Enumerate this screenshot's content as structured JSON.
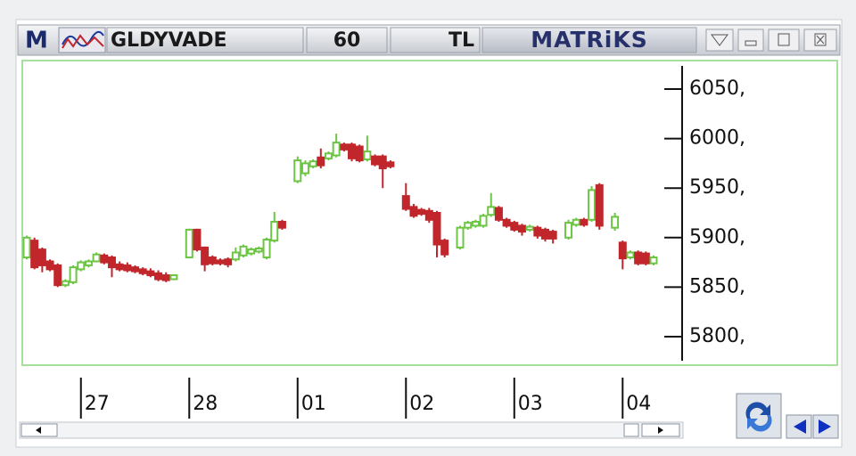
{
  "toolbar": {
    "logo": "M",
    "symbol": "GLDYVADE",
    "period": "60",
    "currency": "TL",
    "brand": "MATRiKS"
  },
  "chart_data": {
    "type": "candlestick",
    "up_color": "#6cc644",
    "down_color": "#c0262b",
    "categories": [
      null,
      null,
      null,
      null,
      null,
      null,
      null,
      "27",
      null,
      null,
      null,
      null,
      null,
      null,
      null,
      null,
      null,
      null,
      null,
      null,
      null,
      "28",
      null,
      null,
      null,
      null,
      null,
      null,
      null,
      null,
      null,
      null,
      null,
      null,
      null,
      "01",
      null,
      null,
      null,
      null,
      null,
      null,
      null,
      null,
      null,
      null,
      null,
      null,
      null,
      "02",
      null,
      null,
      null,
      null,
      null,
      null,
      null,
      null,
      null,
      null,
      null,
      null,
      null,
      "03",
      null,
      null,
      null,
      null,
      null,
      null,
      null,
      null,
      null,
      null,
      null,
      null,
      null,
      "04",
      null,
      null,
      null,
      null
    ],
    "open": [
      5880,
      5897,
      5888,
      5876,
      5872,
      5852,
      5855,
      5868,
      5872,
      5876,
      5882,
      5880,
      5873,
      5872,
      5870,
      5868,
      5866,
      5864,
      5862,
      5858,
      null,
      5880,
      5908,
      5890,
      5880,
      5877,
      5878,
      5878,
      5882,
      5884,
      5886,
      5880,
      5897,
      5916,
      null,
      5957,
      5965,
      5972,
      5981,
      5980,
      5983,
      5994,
      5994,
      5992,
      5979,
      5982,
      5982,
      5976,
      null,
      5942,
      5931,
      5928,
      5927,
      5925,
      5897,
      null,
      5890,
      5910,
      5912,
      5912,
      5923,
      5930,
      5918,
      5915,
      5912,
      5908,
      5910,
      5908,
      5906,
      null,
      5900,
      5913,
      5918,
      5918,
      5953,
      null,
      5910,
      5895,
      5880,
      5885,
      5884,
      5874
    ],
    "high": [
      5902,
      5900,
      5890,
      5878,
      5874,
      5858,
      5872,
      5877,
      5878,
      5885,
      5884,
      5882,
      5876,
      5875,
      5872,
      5870,
      5869,
      5867,
      5865,
      5863,
      null,
      5909,
      5909,
      5891,
      5882,
      5879,
      5880,
      5890,
      5893,
      5890,
      5891,
      5900,
      5926,
      5918,
      null,
      5982,
      5978,
      5979,
      5990,
      5987,
      6005,
      5996,
      5996,
      5994,
      6003,
      5984,
      5984,
      5978,
      null,
      5955,
      5934,
      5930,
      5930,
      5927,
      5899,
      null,
      5912,
      5917,
      5918,
      5924,
      5945,
      5932,
      5920,
      5917,
      5914,
      5913,
      5912,
      5910,
      5908,
      null,
      5918,
      5920,
      5920,
      5952,
      5955,
      null,
      5925,
      5897,
      5887,
      5887,
      5886,
      5882
    ],
    "low": [
      5878,
      5868,
      5865,
      5866,
      5850,
      5850,
      5853,
      5866,
      5870,
      5875,
      5873,
      5860,
      5866,
      5865,
      5864,
      5862,
      5860,
      5856,
      5855,
      5857,
      null,
      5879,
      5886,
      5866,
      5872,
      5872,
      5870,
      5876,
      5880,
      5882,
      5884,
      5878,
      5895,
      5908,
      null,
      5955,
      5962,
      5970,
      5970,
      5978,
      5981,
      5987,
      5977,
      5976,
      5977,
      5972,
      5950,
      5970,
      null,
      5927,
      5920,
      5922,
      5915,
      5880,
      5880,
      null,
      5888,
      5908,
      5910,
      5910,
      5921,
      5916,
      5910,
      5906,
      5902,
      5906,
      5899,
      5896,
      5894,
      null,
      5898,
      5911,
      5911,
      5916,
      5908,
      null,
      5907,
      5868,
      5878,
      5872,
      5872,
      5872
    ],
    "close": [
      5900,
      5870,
      5872,
      5868,
      5852,
      5856,
      5870,
      5875,
      5876,
      5883,
      5875,
      5870,
      5868,
      5867,
      5866,
      5864,
      5862,
      5858,
      5857,
      5862,
      null,
      5908,
      5888,
      5873,
      5874,
      5874,
      5873,
      5885,
      5891,
      5888,
      5889,
      5898,
      5916,
      5910,
      null,
      5978,
      5975,
      5977,
      5973,
      5985,
      5996,
      5989,
      5980,
      5978,
      5987,
      5974,
      5970,
      5972,
      null,
      5929,
      5922,
      5924,
      5918,
      5893,
      5883,
      null,
      5910,
      5915,
      5916,
      5922,
      5931,
      5918,
      5912,
      5908,
      5906,
      5911,
      5902,
      5899,
      5899,
      null,
      5915,
      5918,
      5913,
      5948,
      5912,
      null,
      5921,
      5879,
      5885,
      5874,
      5874,
      5880
    ],
    "ylim": [
      5773,
      6077
    ],
    "yticks": [
      {
        "value": 5800,
        "label": "5800,"
      },
      {
        "value": 5850,
        "label": "5850,"
      },
      {
        "value": 5900,
        "label": "5900,"
      },
      {
        "value": 5950,
        "label": "5950,"
      },
      {
        "value": 6000,
        "label": "6000,"
      },
      {
        "value": 6050,
        "label": "6050,"
      }
    ]
  }
}
